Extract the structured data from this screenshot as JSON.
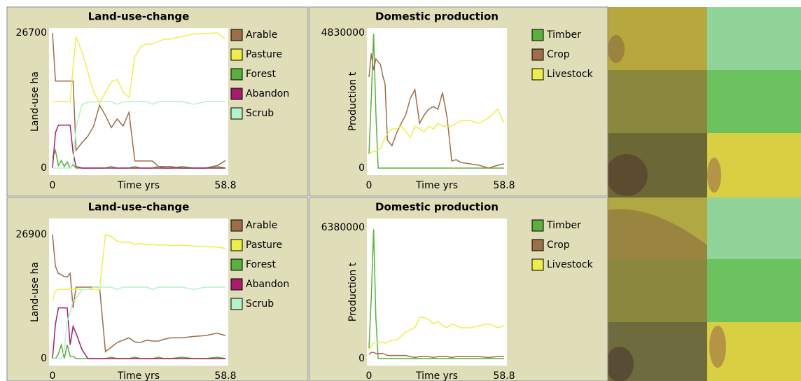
{
  "chart_data": [
    {
      "type": "line",
      "title": "Land-use-change",
      "xlabel": "Time yrs",
      "ylabel": "Land-use ha",
      "x": [
        0,
        1,
        2,
        3,
        4,
        5,
        6,
        7,
        8,
        10,
        12,
        14,
        16,
        18,
        20,
        22,
        24,
        26,
        28,
        30,
        32,
        34,
        36,
        38,
        40,
        44,
        48,
        52,
        56,
        58.8
      ],
      "xlim": [
        0,
        58.8
      ],
      "xticks": [
        0,
        58.8
      ],
      "ylim": [
        0,
        26700
      ],
      "yticks": [
        0,
        26700
      ],
      "grid": false,
      "series": [
        {
          "name": "Arable",
          "color": "#9d6e48",
          "values": [
            26700,
            17200,
            17200,
            17200,
            17200,
            17200,
            17200,
            17200,
            3500,
            5000,
            6300,
            8300,
            12400,
            10400,
            8000,
            9700,
            8300,
            11000,
            1400,
            1400,
            1400,
            1400,
            300,
            300,
            300,
            0,
            0,
            0,
            500,
            1500
          ]
        },
        {
          "name": "Pasture",
          "color": "#eeee4b",
          "values": [
            13100,
            13100,
            13100,
            13100,
            13100,
            13100,
            13100,
            20000,
            26000,
            23000,
            19000,
            15000,
            12800,
            15000,
            17000,
            17500,
            15000,
            14000,
            22000,
            24000,
            24500,
            24500,
            25000,
            25500,
            25500,
            26000,
            26500,
            26600,
            26700,
            25500
          ]
        },
        {
          "name": "Forest",
          "color": "#59b03c",
          "values": [
            2000,
            3500,
            500,
            1500,
            300,
            1200,
            0,
            700,
            0,
            0,
            0,
            0,
            0,
            0,
            300,
            0,
            0,
            0,
            300,
            0,
            0,
            0,
            300,
            0,
            0,
            300,
            0,
            0,
            300,
            0
          ]
        },
        {
          "name": "Abandon",
          "color": "#a71b6a",
          "values": [
            0,
            7000,
            8500,
            8500,
            8500,
            8500,
            8500,
            3000,
            300,
            0,
            0,
            0,
            0,
            0,
            0,
            0,
            0,
            0,
            0,
            0,
            0,
            0,
            0,
            0,
            0,
            0,
            0,
            0,
            0,
            0
          ]
        },
        {
          "name": "Scrub",
          "color": "#b5f2c8",
          "values": [
            0,
            0,
            0,
            0,
            0,
            0,
            0,
            1000,
            8000,
            12500,
            13000,
            13100,
            13100,
            13100,
            13100,
            12600,
            13100,
            13100,
            13100,
            13100,
            13100,
            12600,
            13100,
            13100,
            13100,
            13100,
            12600,
            13100,
            13100,
            13100
          ]
        }
      ]
    },
    {
      "type": "line",
      "title": "Domestic production",
      "xlabel": "Time yrs",
      "ylabel": "Production t",
      "x": [
        0,
        1,
        2,
        3,
        4,
        5,
        6,
        7,
        8,
        10,
        12,
        14,
        16,
        18,
        20,
        22,
        24,
        26,
        28,
        30,
        32,
        34,
        36,
        38,
        40,
        44,
        48,
        52,
        56,
        58.8
      ],
      "xlim": [
        0,
        58.8
      ],
      "xticks": [
        0,
        58.8
      ],
      "ylim": [
        0,
        4830000
      ],
      "yticks": [
        0,
        4830000
      ],
      "grid": false,
      "series": [
        {
          "name": "Timber",
          "color": "#59b03c",
          "values": [
            500000,
            2500000,
            4800000,
            2000000,
            0,
            0,
            0,
            0,
            0,
            0,
            0,
            0,
            0,
            0,
            0,
            0,
            0,
            0,
            0,
            0,
            0,
            0,
            0,
            0,
            0,
            0,
            0,
            0,
            0,
            0
          ]
        },
        {
          "name": "Crop",
          "color": "#9d6e48",
          "values": [
            3250000,
            4100000,
            3500000,
            3900000,
            3800000,
            3700000,
            3300000,
            3000000,
            1000000,
            800000,
            1250000,
            1600000,
            1900000,
            2500000,
            2800000,
            1600000,
            1900000,
            2100000,
            2200000,
            2100000,
            2700000,
            1800000,
            250000,
            300000,
            200000,
            150000,
            100000,
            0,
            100000,
            150000
          ]
        },
        {
          "name": "Livestock",
          "color": "#eeee4b",
          "values": [
            500000,
            550000,
            600000,
            600000,
            650000,
            700000,
            900000,
            1100000,
            1200000,
            1400000,
            1400000,
            1500000,
            1300000,
            1100000,
            1500000,
            1400000,
            1300000,
            1500000,
            1400000,
            1600000,
            1500000,
            1500000,
            1500000,
            1600000,
            1700000,
            1700000,
            1600000,
            1800000,
            2100000,
            1600000
          ]
        }
      ]
    },
    {
      "type": "line",
      "title": "Land-use-change",
      "xlabel": "Time yrs",
      "ylabel": "Land-use ha",
      "x": [
        0,
        1,
        2,
        3,
        4,
        5,
        6,
        7,
        8,
        10,
        12,
        14,
        16,
        18,
        20,
        22,
        24,
        26,
        28,
        30,
        32,
        34,
        36,
        38,
        40,
        44,
        48,
        52,
        56,
        58.8
      ],
      "xlim": [
        0,
        58.8
      ],
      "xticks": [
        0,
        58.8
      ],
      "ylim": [
        0,
        26900
      ],
      "yticks": [
        0,
        26900
      ],
      "grid": false,
      "series": [
        {
          "name": "Arable",
          "color": "#9d6e48",
          "values": [
            26900,
            20000,
            18500,
            18200,
            17800,
            17700,
            18500,
            11000,
            15500,
            15500,
            15500,
            15500,
            15500,
            1500,
            2500,
            3500,
            4000,
            4500,
            3600,
            3500,
            4000,
            3800,
            3800,
            4200,
            4500,
            4500,
            4800,
            5000,
            5500,
            5000
          ]
        },
        {
          "name": "Pasture",
          "color": "#eeee4b",
          "values": [
            12500,
            14700,
            15000,
            15000,
            15000,
            15000,
            15000,
            15000,
            15000,
            15000,
            15000,
            15000,
            15000,
            26900,
            26500,
            25500,
            25200,
            25300,
            24800,
            25000,
            24700,
            24800,
            24600,
            24700,
            24500,
            24600,
            24400,
            24300,
            24200,
            23900
          ]
        },
        {
          "name": "Forest",
          "color": "#59b03c",
          "values": [
            0,
            0,
            1000,
            3000,
            0,
            3000,
            500,
            500,
            0,
            0,
            0,
            0,
            0,
            0,
            300,
            0,
            0,
            0,
            300,
            0,
            0,
            0,
            300,
            0,
            0,
            300,
            0,
            0,
            300,
            0
          ]
        },
        {
          "name": "Abandon",
          "color": "#a71b6a",
          "values": [
            0,
            7500,
            11000,
            11000,
            11000,
            11000,
            3000,
            7000,
            5500,
            2000,
            0,
            0,
            0,
            0,
            0,
            0,
            0,
            0,
            0,
            0,
            0,
            0,
            0,
            0,
            0,
            0,
            0,
            0,
            0,
            0
          ]
        },
        {
          "name": "Scrub",
          "color": "#b5f2c8",
          "values": [
            0,
            0,
            0,
            0,
            2000,
            8000,
            10000,
            12500,
            13000,
            15000,
            15000,
            15500,
            15500,
            15500,
            15500,
            15000,
            15500,
            15500,
            15500,
            15500,
            15500,
            15000,
            15500,
            15500,
            15500,
            15500,
            15000,
            15500,
            15500,
            15500
          ]
        }
      ]
    },
    {
      "type": "line",
      "title": "Domestic production",
      "xlabel": "Time yrs",
      "ylabel": "Production t",
      "x": [
        0,
        1,
        2,
        3,
        4,
        5,
        6,
        7,
        8,
        10,
        12,
        14,
        16,
        18,
        20,
        22,
        24,
        26,
        28,
        30,
        32,
        34,
        36,
        38,
        40,
        44,
        48,
        52,
        56,
        58.8
      ],
      "xlim": [
        0,
        58.8
      ],
      "xticks": [
        0,
        58.8
      ],
      "ylim": [
        0,
        6380000
      ],
      "yticks": [
        0,
        6380000
      ],
      "grid": false,
      "series": [
        {
          "name": "Timber",
          "color": "#59b03c",
          "values": [
            500000,
            3000000,
            6300000,
            2000000,
            0,
            0,
            0,
            0,
            0,
            0,
            0,
            0,
            0,
            0,
            0,
            0,
            0,
            0,
            0,
            0,
            0,
            0,
            0,
            0,
            0,
            0,
            0,
            0,
            0,
            0
          ]
        },
        {
          "name": "Crop",
          "color": "#9d6e48",
          "values": [
            200000,
            300000,
            300000,
            250000,
            250000,
            250000,
            250000,
            200000,
            150000,
            150000,
            150000,
            150000,
            150000,
            100000,
            50000,
            100000,
            100000,
            100000,
            50000,
            100000,
            100000,
            100000,
            50000,
            100000,
            100000,
            100000,
            100000,
            50000,
            100000,
            100000
          ]
        },
        {
          "name": "Livestock",
          "color": "#eeee4b",
          "values": [
            400000,
            600000,
            750000,
            800000,
            750000,
            800000,
            800000,
            750000,
            800000,
            900000,
            900000,
            1100000,
            1300000,
            1400000,
            1500000,
            2000000,
            2000000,
            1900000,
            1700000,
            1800000,
            1600000,
            1500000,
            1700000,
            1600000,
            1500000,
            1500000,
            1600000,
            1700000,
            1500000,
            1600000
          ]
        }
      ]
    }
  ]
}
